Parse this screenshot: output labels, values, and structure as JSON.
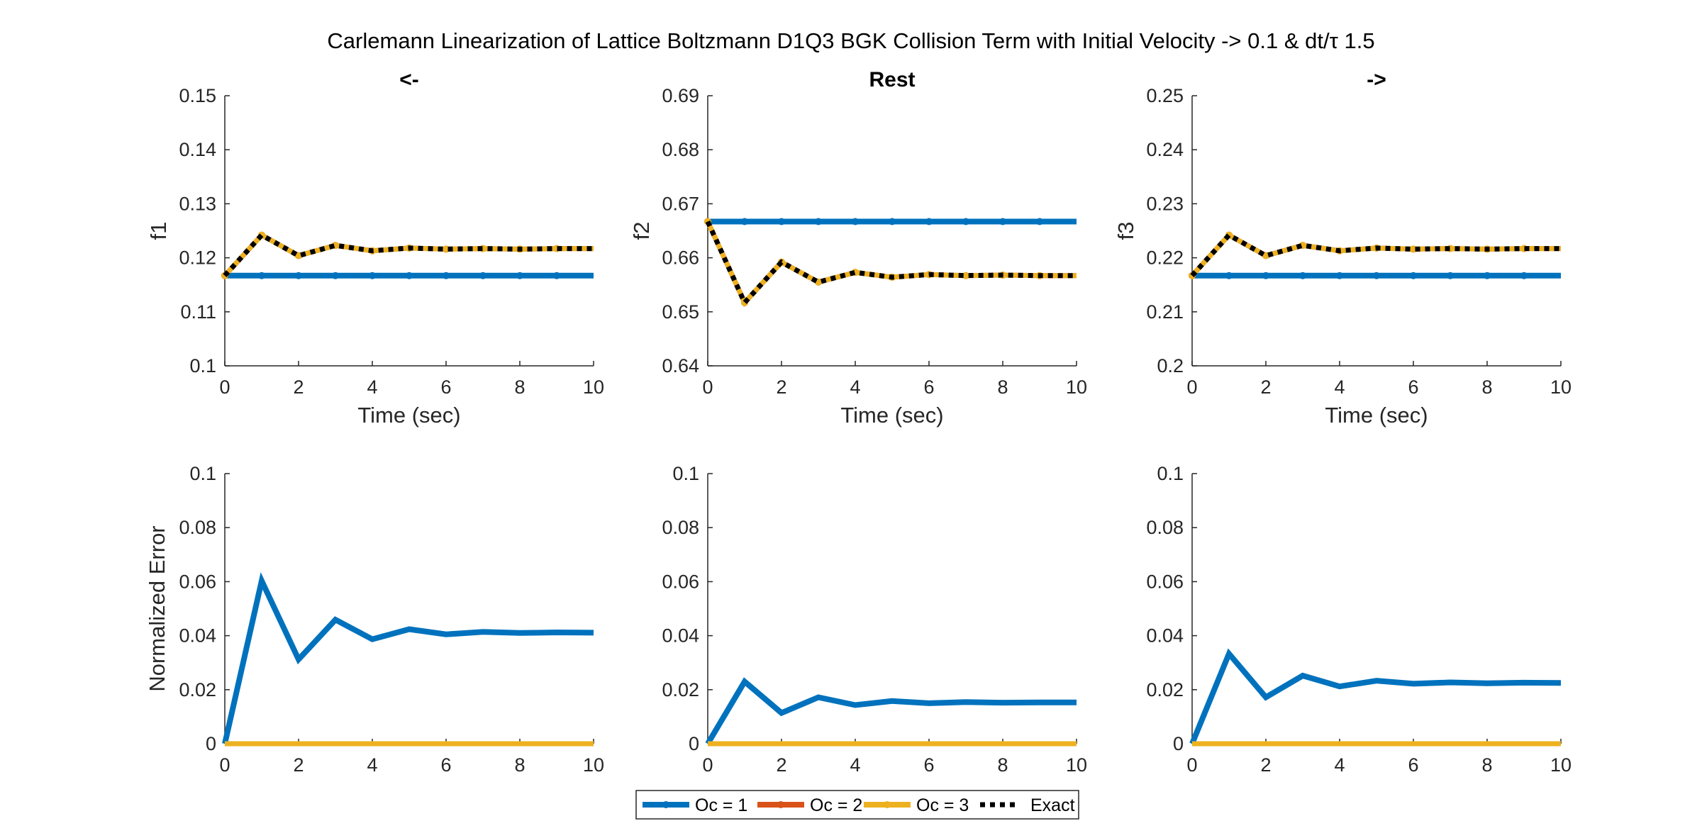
{
  "figure": {
    "title": "Carlemann Linearization of Lattice Boltzmann D1Q3 BGK Collision Term with Initial Velocity -> 0.1 & dt/τ 1.5"
  },
  "colors": {
    "oc1": "#0072BD",
    "oc2": "#D95319",
    "oc3": "#EDB120",
    "exact": "#000000",
    "axis": "#262626"
  },
  "legend": [
    {
      "key": "oc1",
      "label": "Oc = 1",
      "style": "solid-marker"
    },
    {
      "key": "oc2",
      "label": "Oc = 2",
      "style": "solid-marker"
    },
    {
      "key": "oc3",
      "label": "Oc = 3",
      "style": "solid-marker"
    },
    {
      "key": "exact",
      "label": "Exact",
      "style": "dotted"
    }
  ],
  "chart_data": [
    {
      "type": "line",
      "title": "<-",
      "xlabel": "Time (sec)",
      "ylabel": "f1",
      "xlim": [
        0,
        10
      ],
      "ylim": [
        0.1,
        0.15
      ],
      "xticks": [
        "0",
        "2",
        "4",
        "6",
        "8",
        "10"
      ],
      "yticks": [
        "0.1",
        "0.11",
        "0.12",
        "0.13",
        "0.14",
        "0.15"
      ],
      "x": [
        0,
        1,
        2,
        3,
        4,
        5,
        6,
        7,
        8,
        9,
        10
      ],
      "series": [
        {
          "name": "Oc = 1",
          "key": "oc1",
          "markers": true,
          "values": [
            0.1167,
            0.1167,
            0.1167,
            0.1167,
            0.1167,
            0.1167,
            0.1167,
            0.1167,
            0.1167,
            0.1167,
            0.1167
          ]
        },
        {
          "name": "Oc = 2",
          "key": "oc2",
          "markers": true,
          "values": [
            0.1167,
            0.1242,
            0.1204,
            0.1223,
            0.1213,
            0.1218,
            0.1216,
            0.1217,
            0.1216,
            0.1217,
            0.1217
          ]
        },
        {
          "name": "Oc = 3",
          "key": "oc3",
          "markers": true,
          "values": [
            0.1167,
            0.1242,
            0.1204,
            0.1223,
            0.1213,
            0.1218,
            0.1216,
            0.1217,
            0.1216,
            0.1217,
            0.1217
          ]
        },
        {
          "name": "Exact",
          "key": "exact",
          "markers": false,
          "values": [
            0.1167,
            0.1242,
            0.1204,
            0.1223,
            0.1213,
            0.1218,
            0.1216,
            0.1217,
            0.1216,
            0.1217,
            0.1217
          ]
        }
      ]
    },
    {
      "type": "line",
      "title": "Rest",
      "xlabel": "Time (sec)",
      "ylabel": "f2",
      "xlim": [
        0,
        10
      ],
      "ylim": [
        0.64,
        0.69
      ],
      "xticks": [
        "0",
        "2",
        "4",
        "6",
        "8",
        "10"
      ],
      "yticks": [
        "0.64",
        "0.65",
        "0.66",
        "0.67",
        "0.68",
        "0.69"
      ],
      "x": [
        0,
        1,
        2,
        3,
        4,
        5,
        6,
        7,
        8,
        9,
        10
      ],
      "series": [
        {
          "name": "Oc = 1",
          "key": "oc1",
          "markers": true,
          "values": [
            0.6667,
            0.6667,
            0.6667,
            0.6667,
            0.6667,
            0.6667,
            0.6667,
            0.6667,
            0.6667,
            0.6667,
            0.6667
          ]
        },
        {
          "name": "Oc = 2",
          "key": "oc2",
          "markers": true,
          "values": [
            0.6667,
            0.6517,
            0.6592,
            0.6555,
            0.6573,
            0.6564,
            0.6569,
            0.6567,
            0.6568,
            0.6567,
            0.6567
          ]
        },
        {
          "name": "Oc = 3",
          "key": "oc3",
          "markers": true,
          "values": [
            0.6667,
            0.6517,
            0.6592,
            0.6555,
            0.6573,
            0.6564,
            0.6569,
            0.6567,
            0.6568,
            0.6567,
            0.6567
          ]
        },
        {
          "name": "Exact",
          "key": "exact",
          "markers": false,
          "values": [
            0.6667,
            0.6517,
            0.6592,
            0.6555,
            0.6573,
            0.6564,
            0.6569,
            0.6567,
            0.6568,
            0.6567,
            0.6567
          ]
        }
      ]
    },
    {
      "type": "line",
      "title": "->",
      "xlabel": "Time (sec)",
      "ylabel": "f3",
      "xlim": [
        0,
        10
      ],
      "ylim": [
        0.2,
        0.25
      ],
      "xticks": [
        "0",
        "2",
        "4",
        "6",
        "8",
        "10"
      ],
      "yticks": [
        "0.2",
        "0.21",
        "0.22",
        "0.23",
        "0.24",
        "0.25"
      ],
      "x": [
        0,
        1,
        2,
        3,
        4,
        5,
        6,
        7,
        8,
        9,
        10
      ],
      "series": [
        {
          "name": "Oc = 1",
          "key": "oc1",
          "markers": true,
          "values": [
            0.2167,
            0.2167,
            0.2167,
            0.2167,
            0.2167,
            0.2167,
            0.2167,
            0.2167,
            0.2167,
            0.2167,
            0.2167
          ]
        },
        {
          "name": "Oc = 2",
          "key": "oc2",
          "markers": true,
          "values": [
            0.2167,
            0.2242,
            0.2204,
            0.2223,
            0.2213,
            0.2218,
            0.2216,
            0.2217,
            0.2216,
            0.2217,
            0.2217
          ]
        },
        {
          "name": "Oc = 3",
          "key": "oc3",
          "markers": true,
          "values": [
            0.2167,
            0.2242,
            0.2204,
            0.2223,
            0.2213,
            0.2218,
            0.2216,
            0.2217,
            0.2216,
            0.2217,
            0.2217
          ]
        },
        {
          "name": "Exact",
          "key": "exact",
          "markers": false,
          "values": [
            0.2167,
            0.2242,
            0.2204,
            0.2223,
            0.2213,
            0.2218,
            0.2216,
            0.2217,
            0.2216,
            0.2217,
            0.2217
          ]
        }
      ]
    },
    {
      "type": "line",
      "title": "",
      "xlabel": "",
      "ylabel": "Normalized Error",
      "xlim": [
        0,
        10
      ],
      "ylim": [
        0,
        0.1
      ],
      "xticks": [
        "0",
        "2",
        "4",
        "6",
        "8",
        "10"
      ],
      "yticks": [
        "0",
        "0.02",
        "0.04",
        "0.06",
        "0.08",
        "0.1"
      ],
      "x": [
        0,
        1,
        2,
        3,
        4,
        5,
        6,
        7,
        8,
        9,
        10
      ],
      "series": [
        {
          "name": "Oc = 1",
          "key": "oc1",
          "markers": false,
          "values": [
            0,
            0.0603,
            0.0312,
            0.0459,
            0.0387,
            0.0424,
            0.0405,
            0.0414,
            0.041,
            0.0412,
            0.0411
          ]
        },
        {
          "name": "Oc = 2",
          "key": "oc2",
          "markers": false,
          "values": [
            0,
            0,
            0,
            0,
            0,
            0,
            0,
            0,
            0,
            0,
            0
          ]
        },
        {
          "name": "Oc = 3",
          "key": "oc3",
          "markers": false,
          "values": [
            0,
            0,
            0,
            0,
            0,
            0,
            0,
            0,
            0,
            0,
            0
          ]
        }
      ]
    },
    {
      "type": "line",
      "title": "",
      "xlabel": "",
      "ylabel": "",
      "xlim": [
        0,
        10
      ],
      "ylim": [
        0,
        0.1
      ],
      "xticks": [
        "0",
        "2",
        "4",
        "6",
        "8",
        "10"
      ],
      "yticks": [
        "0",
        "0.02",
        "0.04",
        "0.06",
        "0.08",
        "0.1"
      ],
      "x": [
        0,
        1,
        2,
        3,
        4,
        5,
        6,
        7,
        8,
        9,
        10
      ],
      "series": [
        {
          "name": "Oc = 1",
          "key": "oc1",
          "markers": false,
          "values": [
            0,
            0.023,
            0.0114,
            0.0172,
            0.0143,
            0.0158,
            0.015,
            0.0154,
            0.0152,
            0.0153,
            0.0153
          ]
        },
        {
          "name": "Oc = 2",
          "key": "oc2",
          "markers": false,
          "values": [
            0,
            0,
            0,
            0,
            0,
            0,
            0,
            0,
            0,
            0,
            0
          ]
        },
        {
          "name": "Oc = 3",
          "key": "oc3",
          "markers": false,
          "values": [
            0,
            0,
            0,
            0,
            0,
            0,
            0,
            0,
            0,
            0,
            0
          ]
        }
      ]
    },
    {
      "type": "line",
      "title": "",
      "xlabel": "",
      "ylabel": "",
      "xlim": [
        0,
        10
      ],
      "ylim": [
        0,
        0.1
      ],
      "xticks": [
        "0",
        "2",
        "4",
        "6",
        "8",
        "10"
      ],
      "yticks": [
        "0",
        "0.02",
        "0.04",
        "0.06",
        "0.08",
        "0.1"
      ],
      "x": [
        0,
        1,
        2,
        3,
        4,
        5,
        6,
        7,
        8,
        9,
        10
      ],
      "series": [
        {
          "name": "Oc = 1",
          "key": "oc1",
          "markers": false,
          "values": [
            0,
            0.0333,
            0.0172,
            0.0252,
            0.0212,
            0.0233,
            0.0222,
            0.0227,
            0.0224,
            0.0226,
            0.0225
          ]
        },
        {
          "name": "Oc = 2",
          "key": "oc2",
          "markers": false,
          "values": [
            0,
            0,
            0,
            0,
            0,
            0,
            0,
            0,
            0,
            0,
            0
          ]
        },
        {
          "name": "Oc = 3",
          "key": "oc3",
          "markers": false,
          "values": [
            0,
            0,
            0,
            0,
            0,
            0,
            0,
            0,
            0,
            0,
            0
          ]
        }
      ]
    }
  ]
}
